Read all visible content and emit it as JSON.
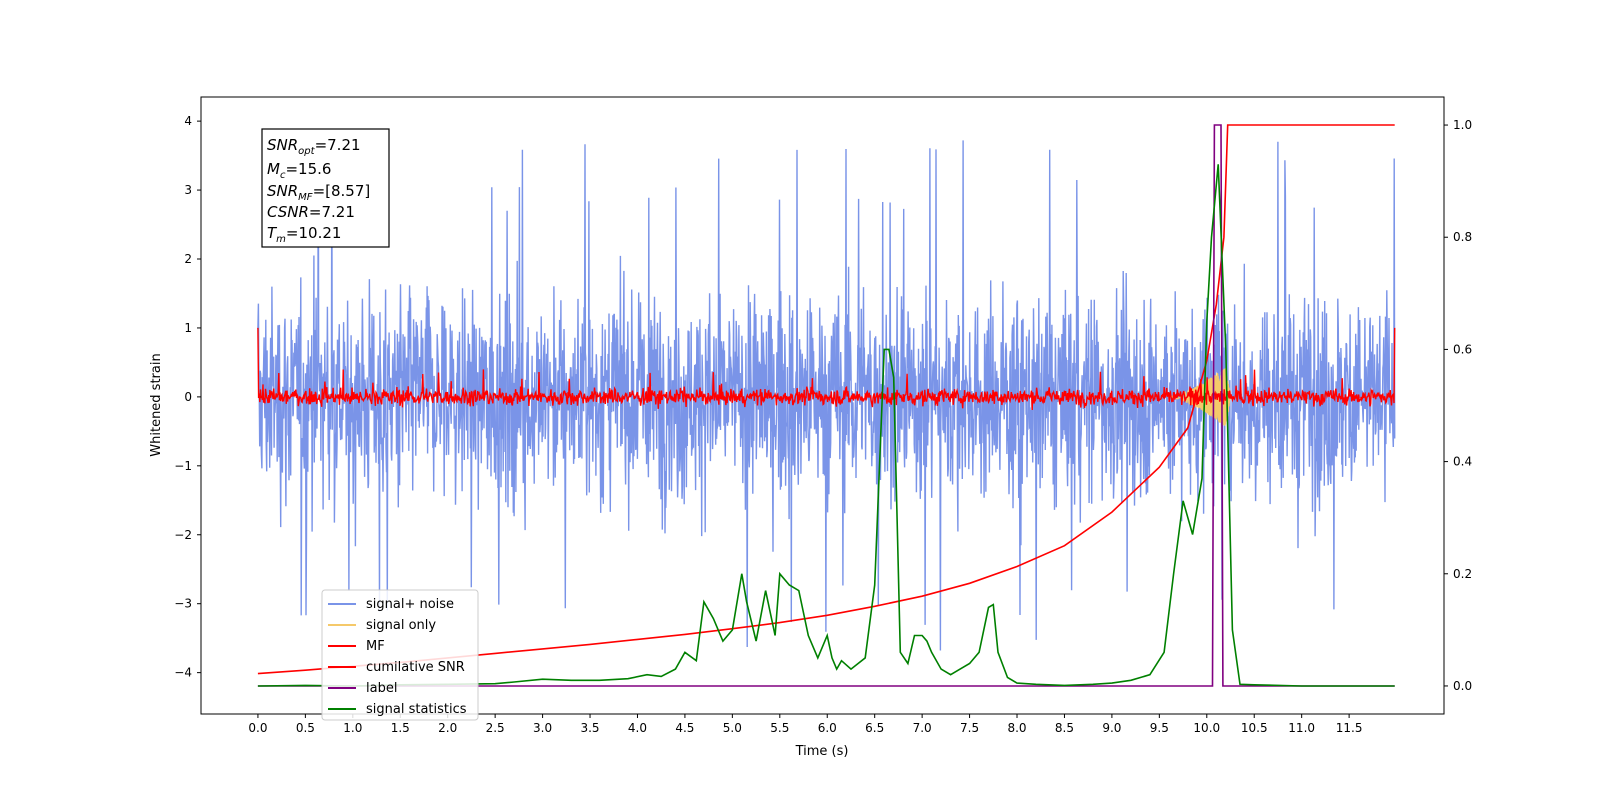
{
  "chart_data": {
    "type": "line",
    "xlabel": "Time (s)",
    "ylabel_left": "Whitened strain",
    "ylabel_right": "",
    "xlim": [
      -0.6,
      12.5
    ],
    "ylim_left": [
      -4.6,
      4.35
    ],
    "ylim_right": [
      -0.05,
      1.05
    ],
    "x_ticks": [
      0.0,
      0.5,
      1.0,
      1.5,
      2.0,
      2.5,
      3.0,
      3.5,
      4.0,
      4.5,
      5.0,
      5.5,
      6.0,
      6.5,
      7.0,
      7.5,
      8.0,
      8.5,
      9.0,
      9.5,
      10.0,
      10.5,
      11.0,
      11.5
    ],
    "x_tick_labels": [
      "0.0",
      "0.5",
      "1.0",
      "1.5",
      "2.0",
      "2.5",
      "3.0",
      "3.5",
      "4.0",
      "4.5",
      "5.0",
      "5.5",
      "6.0",
      "6.5",
      "7.0",
      "7.5",
      "8.0",
      "8.5",
      "9.0",
      "9.5",
      "10.0",
      "10.5",
      "11.0",
      "11.5"
    ],
    "y_left_ticks": [
      -4,
      -3,
      -2,
      -1,
      0,
      1,
      2,
      3,
      4
    ],
    "y_left_tick_labels": [
      "−4",
      "−3",
      "−2",
      "−1",
      "0",
      "1",
      "2",
      "3",
      "4"
    ],
    "y_right_ticks": [
      0.0,
      0.2,
      0.4,
      0.6,
      0.8,
      1.0
    ],
    "y_right_tick_labels": [
      "0.0",
      "0.2",
      "0.4",
      "0.6",
      "0.8",
      "1.0"
    ],
    "grid": false,
    "legend_position": "bottom-left",
    "annotation": {
      "lines": [
        {
          "sym": "SNR",
          "sub": "opt",
          "val": "=7.21"
        },
        {
          "sym": "M",
          "sub": "c",
          "val": "=15.6"
        },
        {
          "sym": "SNR",
          "sub": "MF",
          "val": "=[8.57]"
        },
        {
          "sym": "CSNR",
          "sub": "",
          "val": "=7.21"
        },
        {
          "sym": "T",
          "sub": "m",
          "val": "=10.21"
        }
      ]
    },
    "series": [
      {
        "name": "signal+ noise",
        "color": "#7a94e8",
        "axis": "left",
        "kind": "noise",
        "x_range": [
          0.0,
          11.98
        ],
        "typical_max": 2.2,
        "peak_max": 3.95,
        "peak_min": -4.0
      },
      {
        "name": "signal only",
        "color": "#f5c96a",
        "axis": "left",
        "kind": "chirp",
        "x_range": [
          9.6,
          10.25
        ],
        "amplitude_max": 0.5
      },
      {
        "name": "MF",
        "color": "#ff0000",
        "axis": "left",
        "kind": "matched_filter",
        "x_range": [
          0.0,
          11.98
        ],
        "typical_max": 0.2,
        "edge_value": 1.0
      },
      {
        "name": "cumilative SNR",
        "color": "#ff0000",
        "axis": "right",
        "x": [
          0.0,
          0.5,
          1.0,
          1.5,
          2.0,
          2.5,
          3.0,
          3.5,
          4.0,
          4.5,
          5.0,
          5.5,
          6.0,
          6.5,
          7.0,
          7.5,
          8.0,
          8.5,
          9.0,
          9.5,
          9.8,
          10.0,
          10.1,
          10.18,
          10.22,
          10.5,
          11.0,
          11.5,
          11.98
        ],
        "y": [
          0.022,
          0.028,
          0.035,
          0.042,
          0.05,
          0.058,
          0.066,
          0.074,
          0.083,
          0.092,
          0.102,
          0.113,
          0.126,
          0.142,
          0.16,
          0.183,
          0.213,
          0.25,
          0.31,
          0.39,
          0.46,
          0.58,
          0.68,
          0.8,
          1.0,
          1.0,
          1.0,
          1.0,
          1.0
        ]
      },
      {
        "name": "label",
        "color": "#800080",
        "axis": "right",
        "x": [
          0.0,
          10.06,
          10.08,
          10.15,
          10.17,
          11.98
        ],
        "y": [
          0.0,
          0.0,
          1.0,
          1.0,
          0.0,
          0.0
        ]
      },
      {
        "name": "signal statistics",
        "color": "#008000",
        "axis": "right",
        "x": [
          0.0,
          0.5,
          1.0,
          1.5,
          2.0,
          2.5,
          2.7,
          3.0,
          3.3,
          3.6,
          3.9,
          4.1,
          4.25,
          4.4,
          4.5,
          4.62,
          4.7,
          4.8,
          4.9,
          5.0,
          5.1,
          5.15,
          5.25,
          5.35,
          5.45,
          5.5,
          5.6,
          5.7,
          5.8,
          5.9,
          6.0,
          6.05,
          6.1,
          6.15,
          6.25,
          6.4,
          6.5,
          6.6,
          6.65,
          6.7,
          6.77,
          6.85,
          6.92,
          7.0,
          7.05,
          7.1,
          7.2,
          7.3,
          7.4,
          7.5,
          7.6,
          7.7,
          7.75,
          7.8,
          7.9,
          8.0,
          8.2,
          8.5,
          8.8,
          9.0,
          9.2,
          9.4,
          9.55,
          9.65,
          9.75,
          9.85,
          9.95,
          10.0,
          10.05,
          10.12,
          10.2,
          10.27,
          10.35,
          10.5,
          11.0,
          11.5,
          11.98
        ],
        "y": [
          0.0,
          0.001,
          0.0,
          0.002,
          0.003,
          0.004,
          0.007,
          0.012,
          0.01,
          0.01,
          0.013,
          0.02,
          0.017,
          0.03,
          0.06,
          0.045,
          0.15,
          0.12,
          0.08,
          0.1,
          0.2,
          0.15,
          0.08,
          0.17,
          0.09,
          0.2,
          0.18,
          0.17,
          0.09,
          0.05,
          0.09,
          0.05,
          0.03,
          0.045,
          0.03,
          0.05,
          0.18,
          0.6,
          0.6,
          0.55,
          0.06,
          0.04,
          0.09,
          0.09,
          0.08,
          0.06,
          0.03,
          0.02,
          0.03,
          0.04,
          0.06,
          0.14,
          0.145,
          0.06,
          0.015,
          0.005,
          0.003,
          0.001,
          0.003,
          0.005,
          0.01,
          0.02,
          0.06,
          0.2,
          0.33,
          0.27,
          0.37,
          0.65,
          0.8,
          0.93,
          0.6,
          0.1,
          0.003,
          0.002,
          0.0,
          0.0,
          0.0
        ]
      }
    ]
  }
}
